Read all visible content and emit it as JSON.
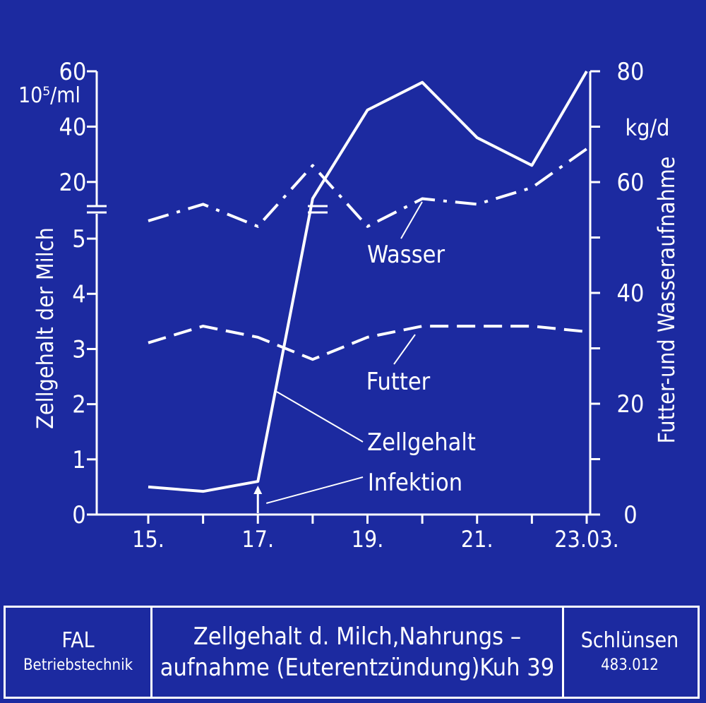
{
  "chart_data": {
    "type": "line",
    "x_ticks": [
      "15.",
      "17.",
      "19.",
      "21.",
      "23.03."
    ],
    "x_days": [
      15,
      16,
      17,
      18,
      19,
      20,
      21,
      22,
      23
    ],
    "left_axis": {
      "label": "Zellgehalt der Milch",
      "unit": "10⁵/ml",
      "lower_ticks": [
        "0",
        "1",
        "2",
        "3",
        "4",
        "5"
      ],
      "upper_ticks": [
        "20",
        "40",
        "60"
      ],
      "lower_range": [
        0,
        5.5
      ],
      "upper_range": [
        10,
        60
      ]
    },
    "right_axis": {
      "label": "Futter-und Wasseraufnahme",
      "unit": "kg/d",
      "ticks": [
        "0",
        "20",
        "40",
        "60",
        "80"
      ],
      "range": [
        0,
        80
      ]
    },
    "series": [
      {
        "name": "Zellgehalt",
        "axis": "left",
        "style": "solid",
        "values": [
          0.5,
          0.42,
          0.6,
          14,
          46,
          56,
          36,
          26,
          60
        ]
      },
      {
        "name": "Wasser",
        "axis": "right",
        "style": "dashdot",
        "values": [
          53,
          56,
          52,
          63,
          52,
          57,
          56,
          59,
          66
        ]
      },
      {
        "name": "Futter",
        "axis": "right",
        "style": "dashed",
        "values": [
          31,
          34,
          32,
          28,
          32,
          34,
          34,
          34,
          33
        ]
      }
    ],
    "annotations": [
      {
        "text": "Infektion",
        "x": 17
      }
    ]
  },
  "footer": {
    "left_line1": "FAL",
    "left_line2": "Betriebstechnik",
    "mid_line1": "Zellgehalt d. Milch,Nahrungs –",
    "mid_line2": "aufnahme (Euterentzündung)Kuh 39",
    "right_line1": "Schlünsen",
    "right_line2": "483.012"
  },
  "colors": {
    "background": "#1c2aa0",
    "ink": "#ffffff"
  }
}
